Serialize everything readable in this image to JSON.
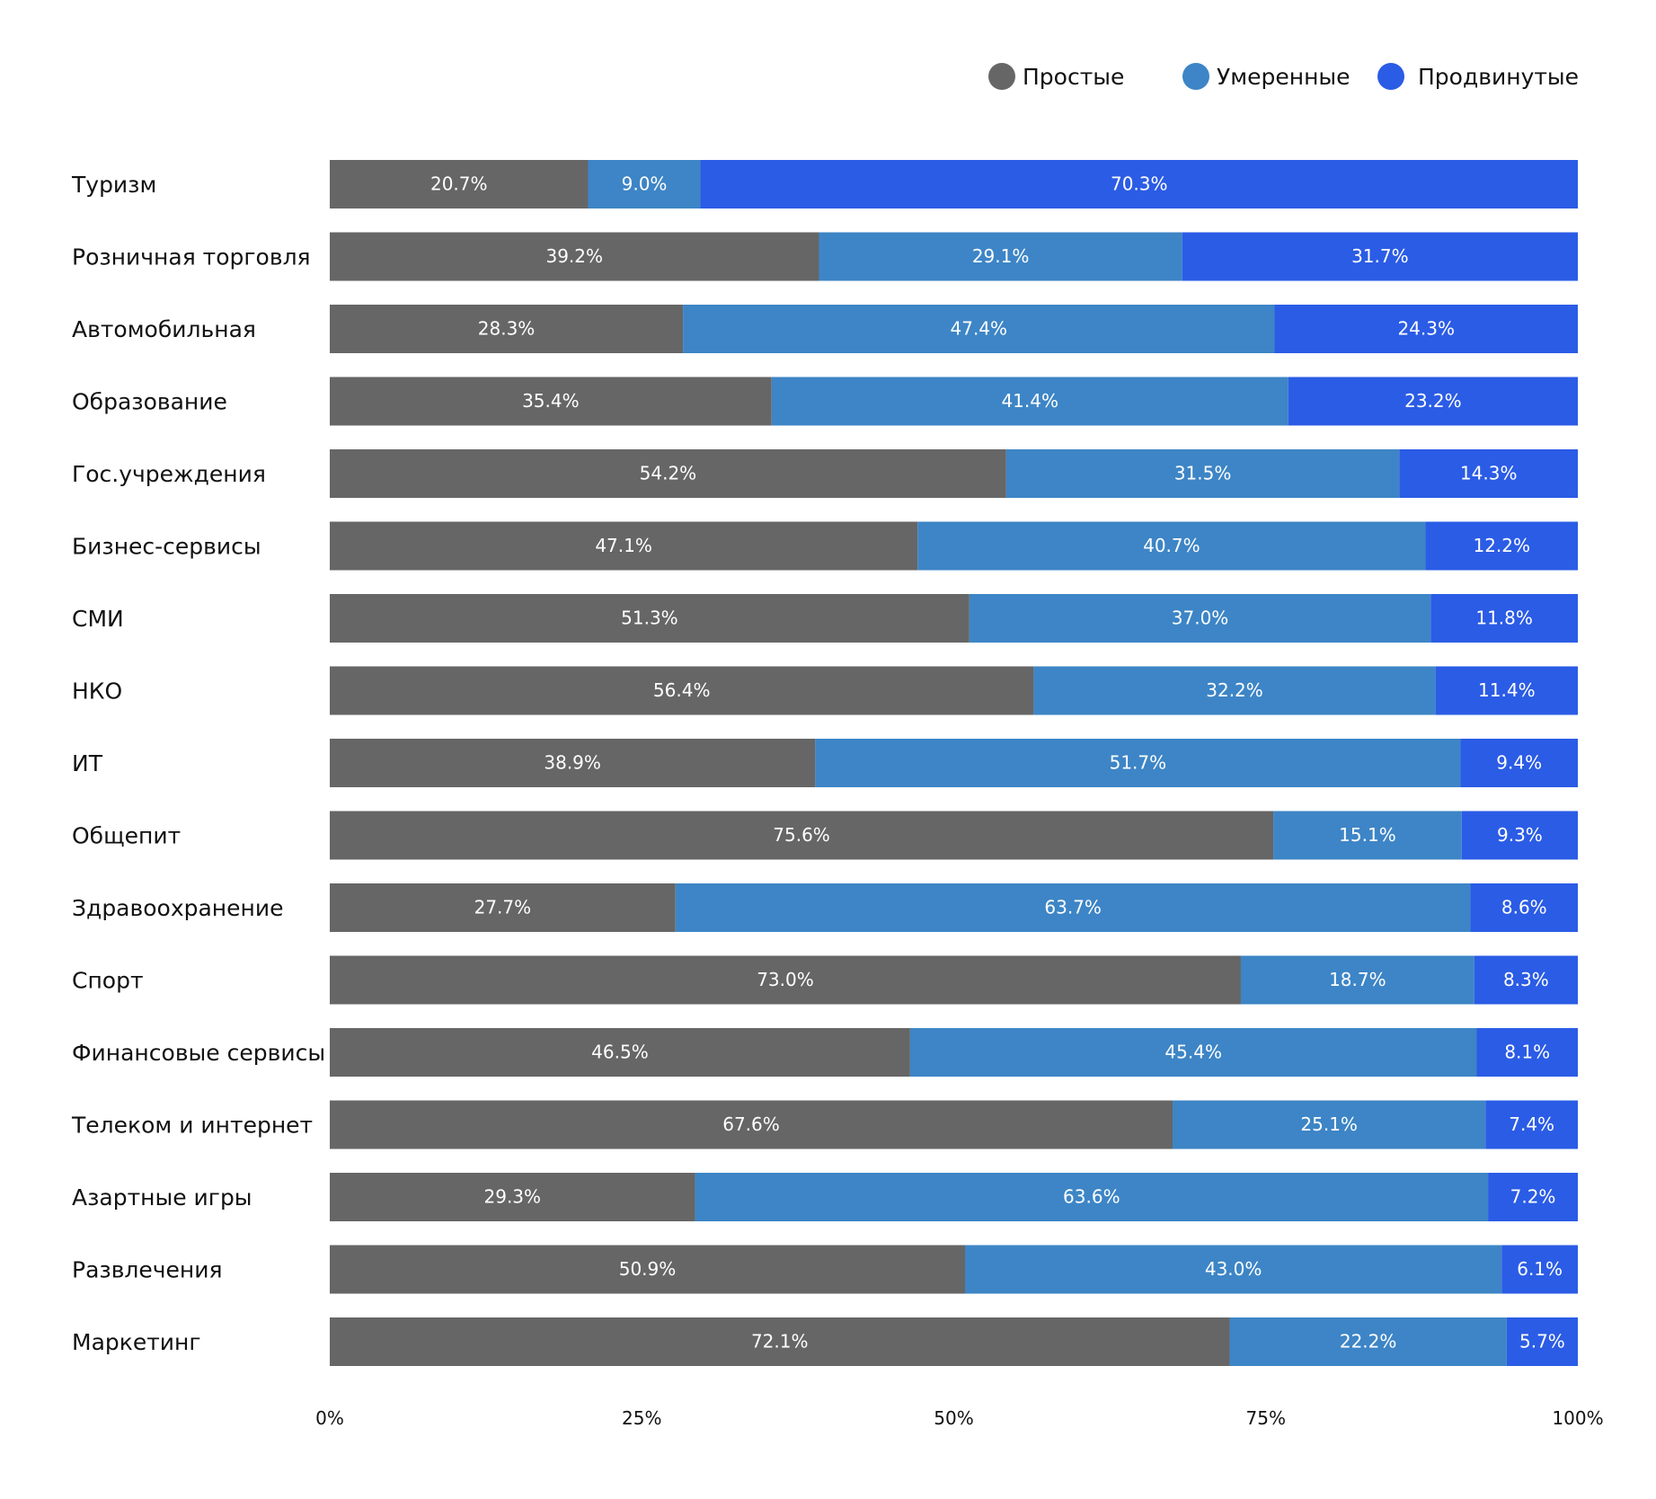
{
  "chart_data": {
    "type": "bar",
    "orientation": "horizontal",
    "stacked": true,
    "categories": [
      "Туризм",
      "Розничная торговля",
      "Автомобильная",
      "Образование",
      "Гос.учреждения",
      "Бизнес-сервисы",
      "СМИ",
      "НКО",
      "ИТ",
      "Общепит",
      "Здравоохранение",
      "Спорт",
      "Финансовые сервисы",
      "Телеком и интернет",
      "Азартные игры",
      "Развлечения",
      "Маркетинг"
    ],
    "series": [
      {
        "name": "Простые",
        "color": "#666666",
        "values": [
          20.7,
          39.2,
          28.3,
          35.4,
          54.2,
          47.1,
          51.3,
          56.4,
          38.9,
          75.6,
          27.7,
          73.0,
          46.5,
          67.6,
          29.3,
          50.9,
          72.1
        ]
      },
      {
        "name": "Умеренные",
        "color": "#3d85c6",
        "values": [
          9.0,
          29.1,
          47.4,
          41.4,
          31.5,
          40.7,
          37.0,
          32.2,
          51.7,
          15.1,
          63.7,
          18.7,
          45.4,
          25.1,
          63.6,
          43.0,
          22.2
        ]
      },
      {
        "name": "Продвинутые",
        "color": "#2b5ce5",
        "values": [
          70.3,
          31.7,
          24.3,
          23.2,
          14.3,
          12.2,
          11.8,
          11.4,
          9.4,
          9.3,
          8.6,
          8.3,
          8.1,
          7.4,
          7.2,
          6.1,
          5.7
        ]
      }
    ],
    "value_labels": [
      [
        "20.7%",
        "39.2%",
        "28.3%",
        "35.4%",
        "54.2%",
        "47.1%",
        "51.3%",
        "56.4%",
        "38.9%",
        "75.6%",
        "27.7%",
        "73.0%",
        "46.5%",
        "67.6%",
        "29.3%",
        "50.9%",
        "72.1%"
      ],
      [
        "9.0%",
        "29.1%",
        "47.4%",
        "41.4%",
        "31.5%",
        "40.7%",
        "37.0%",
        "32.2%",
        "51.7%",
        "15.1%",
        "63.7%",
        "18.7%",
        "45.4%",
        "25.1%",
        "63.6%",
        "43.0%",
        "22.2%"
      ],
      [
        "70.3%",
        "31.7%",
        "24.3%",
        "23.2%",
        "14.3%",
        "12.2%",
        "11.8%",
        "11.4%",
        "9.4%",
        "9.3%",
        "8.6%",
        "8.3%",
        "8.1%",
        "7.4%",
        "7.2%",
        "6.1%",
        "5.7%"
      ]
    ],
    "x_ticks": [
      "0%",
      "25%",
      "50%",
      "75%",
      "100%"
    ],
    "xlim": [
      0,
      100
    ],
    "legend_position": "top-right",
    "grid": false,
    "title": "",
    "xlabel": "",
    "ylabel": ""
  }
}
